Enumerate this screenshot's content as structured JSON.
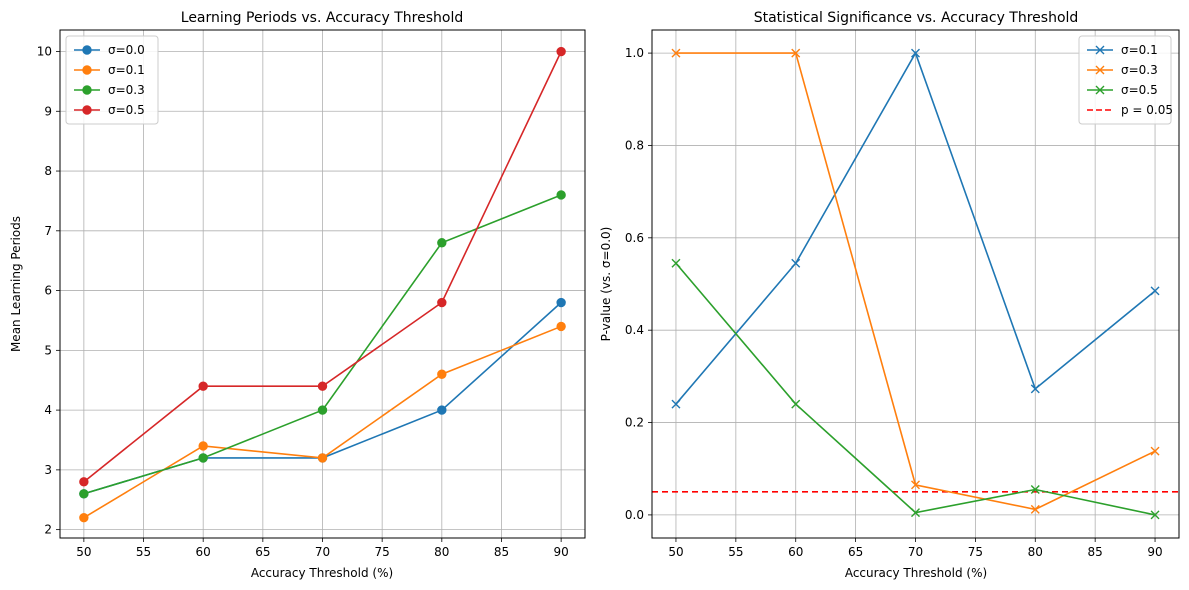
{
  "chart_data": [
    {
      "type": "line",
      "title": "Learning Periods vs. Accuracy Threshold",
      "xlabel": "Accuracy Threshold (%)",
      "ylabel": "Mean Learning Periods",
      "xlim": [
        48,
        92
      ],
      "ylim": [
        1.86,
        10.36
      ],
      "xticks": [
        50,
        55,
        60,
        65,
        70,
        75,
        80,
        85,
        90
      ],
      "yticks": [
        2,
        3,
        4,
        5,
        6,
        7,
        8,
        9,
        10
      ],
      "grid": true,
      "legend_position": "upper-left",
      "marker": "circle",
      "x": [
        50,
        60,
        70,
        80,
        90
      ],
      "series": [
        {
          "name": "σ=0.0",
          "color": "#1f77b4",
          "values": [
            2.6,
            3.2,
            3.2,
            4.0,
            5.8
          ]
        },
        {
          "name": "σ=0.1",
          "color": "#ff7f0e",
          "values": [
            2.2,
            3.4,
            3.2,
            4.6,
            5.4
          ]
        },
        {
          "name": "σ=0.3",
          "color": "#2ca02c",
          "values": [
            2.6,
            3.2,
            4.0,
            6.8,
            7.6
          ]
        },
        {
          "name": "σ=0.5",
          "color": "#d62728",
          "values": [
            2.8,
            4.4,
            4.4,
            5.8,
            10.0
          ]
        }
      ]
    },
    {
      "type": "line",
      "title": "Statistical Significance vs. Accuracy Threshold",
      "xlabel": "Accuracy Threshold (%)",
      "ylabel": "P-value (vs. σ=0.0)",
      "xlim": [
        48,
        92
      ],
      "ylim": [
        -0.05,
        1.05
      ],
      "xticks": [
        50,
        55,
        60,
        65,
        70,
        75,
        80,
        85,
        90
      ],
      "yticks": [
        0.0,
        0.2,
        0.4,
        0.6,
        0.8,
        1.0
      ],
      "ytick_labels": [
        "0.0",
        "0.2",
        "0.4",
        "0.6",
        "0.8",
        "1.0"
      ],
      "grid": true,
      "legend_position": "upper-right",
      "marker": "x",
      "x": [
        50,
        60,
        70,
        80,
        90
      ],
      "series": [
        {
          "name": "σ=0.1",
          "color": "#1f77b4",
          "values": [
            0.24,
            0.545,
            1.0,
            0.273,
            0.485
          ]
        },
        {
          "name": "σ=0.3",
          "color": "#ff7f0e",
          "values": [
            1.0,
            1.0,
            0.065,
            0.012,
            0.138
          ]
        },
        {
          "name": "σ=0.5",
          "color": "#2ca02c",
          "values": [
            0.545,
            0.24,
            0.005,
            0.055,
            0.0
          ]
        }
      ],
      "reference_line": {
        "name": "p = 0.05",
        "y": 0.05,
        "color": "#ff0000",
        "style": "dashed"
      }
    }
  ]
}
